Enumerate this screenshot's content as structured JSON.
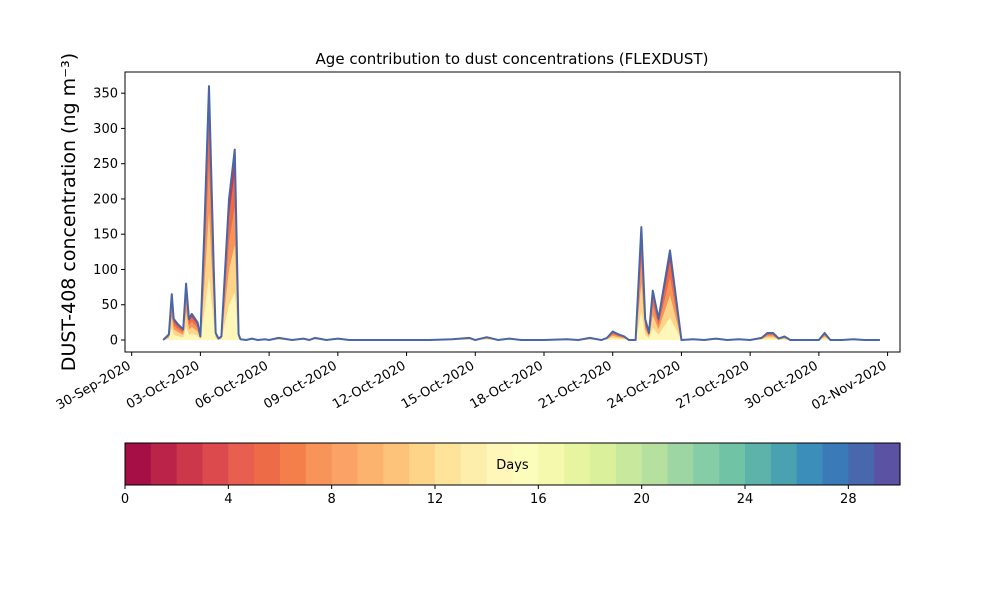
{
  "chart_data": {
    "type": "area",
    "title": "Age contribution to dust concentrations (FLEXDUST)",
    "ylabel": "DUST-408 concentration (ng m⁻³)",
    "xlabel": "",
    "ylim": [
      -17,
      380
    ],
    "xlim": [
      "2020-09-29T17:00",
      "2020-11-02T13:00"
    ],
    "x_tick_labels": [
      "30-Sep-2020",
      "03-Oct-2020",
      "06-Oct-2020",
      "09-Oct-2020",
      "12-Oct-2020",
      "15-Oct-2020",
      "18-Oct-2020",
      "21-Oct-2020",
      "24-Oct-2020",
      "27-Oct-2020",
      "30-Oct-2020",
      "02-Nov-2020"
    ],
    "x_tick_dates": [
      "2020-09-30",
      "2020-10-03",
      "2020-10-06",
      "2020-10-09",
      "2020-10-12",
      "2020-10-15",
      "2020-10-18",
      "2020-10-21",
      "2020-10-24",
      "2020-10-27",
      "2020-10-30",
      "2020-11-02"
    ],
    "y_ticks": [
      0,
      50,
      100,
      150,
      200,
      250,
      300,
      350
    ],
    "series": [
      {
        "type": "line",
        "color": "#4a65a8",
        "x": [
          "2020-10-01T09:00",
          "2020-10-01T15:00",
          "2020-10-01T18:00",
          "2020-10-01T20:00",
          "2020-10-02T00:00",
          "2020-10-02T06:00",
          "2020-10-02T09:00",
          "2020-10-02T12:00",
          "2020-10-02T15:00",
          "2020-10-02T21:00",
          "2020-10-03T00:00",
          "2020-10-03T04:00",
          "2020-10-03T09:00",
          "2020-10-03T14:00",
          "2020-10-03T16:00",
          "2020-10-03T19:00",
          "2020-10-03T22:00",
          "2020-10-04T06:00",
          "2020-10-04T12:00",
          "2020-10-04T14:00",
          "2020-10-04T16:00",
          "2020-10-04T18:00",
          "2020-10-05T00:00",
          "2020-10-05T06:00",
          "2020-10-05T12:00",
          "2020-10-05T20:00",
          "2020-10-06T00:00",
          "2020-10-06T10:00",
          "2020-10-07T00:00",
          "2020-10-07T12:00",
          "2020-10-07T18:00",
          "2020-10-08T00:00",
          "2020-10-08T12:00",
          "2020-10-09T00:00",
          "2020-10-09T12:00",
          "2020-10-09T18:00",
          "2020-10-10T00:00",
          "2020-10-10T12:00",
          "2020-10-11T00:00",
          "2020-10-12T00:00",
          "2020-10-13T00:00",
          "2020-10-14T00:00",
          "2020-10-14T18:00",
          "2020-10-15T00:00",
          "2020-10-15T12:00",
          "2020-10-16T00:00",
          "2020-10-16T12:00",
          "2020-10-17T00:00",
          "2020-10-18T00:00",
          "2020-10-19T00:00",
          "2020-10-19T12:00",
          "2020-10-20T00:00",
          "2020-10-20T12:00",
          "2020-10-20T18:00",
          "2020-10-21T00:00",
          "2020-10-21T06:00",
          "2020-10-21T12:00",
          "2020-10-21T17:00",
          "2020-10-21T21:00",
          "2020-10-22T00:00",
          "2020-10-22T06:00",
          "2020-10-22T10:00",
          "2020-10-22T14:00",
          "2020-10-22T18:00",
          "2020-10-23T00:00",
          "2020-10-23T12:00",
          "2020-10-24T00:00",
          "2020-10-24T12:00",
          "2020-10-25T00:00",
          "2020-10-25T12:00",
          "2020-10-26T00:00",
          "2020-10-26T12:00",
          "2020-10-27T00:00",
          "2020-10-27T12:00",
          "2020-10-27T18:00",
          "2020-10-28T00:00",
          "2020-10-28T06:00",
          "2020-10-28T12:00",
          "2020-10-28T18:00",
          "2020-10-29T00:00",
          "2020-10-29T12:00",
          "2020-10-30T00:00",
          "2020-10-30T06:00",
          "2020-10-30T12:00",
          "2020-10-31T00:00",
          "2020-10-31T12:00",
          "2020-11-01T00:00",
          "2020-11-01T12:00",
          "2020-11-01T16:00"
        ],
        "values": [
          0,
          8,
          65,
          30,
          23,
          15,
          80,
          30,
          37,
          25,
          5,
          150,
          360,
          100,
          10,
          2,
          5,
          200,
          270,
          140,
          8,
          1,
          0,
          2,
          0,
          1,
          0,
          3,
          0,
          2,
          0,
          3,
          0,
          2,
          0,
          0,
          0,
          0,
          0,
          0,
          0,
          1,
          3,
          0,
          4,
          0,
          2,
          0,
          0,
          1,
          0,
          3,
          0,
          3,
          12,
          8,
          5,
          0,
          0,
          0,
          160,
          30,
          10,
          70,
          30,
          127,
          0,
          1,
          0,
          2,
          0,
          1,
          0,
          3,
          10,
          10,
          2,
          5,
          0,
          0,
          0,
          0,
          10,
          0,
          0,
          1,
          0,
          0,
          0
        ]
      }
    ],
    "colorbar": {
      "label": "Days",
      "ticks": [
        0,
        4,
        8,
        12,
        16,
        20,
        24,
        28
      ],
      "range": [
        0,
        30
      ],
      "colors": [
        "#a50f45",
        "#bb2348",
        "#cc384a",
        "#dd4a4d",
        "#e95f4f",
        "#ee6b47",
        "#f57f4b",
        "#f8935a",
        "#fba266",
        "#fcb36e",
        "#fdc37a",
        "#fed488",
        "#fee39a",
        "#fdeeab",
        "#fef7b9",
        "#fbfdbb",
        "#f4f9ae",
        "#e7f5a1",
        "#daf09a",
        "#c8e89e",
        "#b5e0a0",
        "#9dd6a3",
        "#84cda6",
        "#71c3a6",
        "#5db3aa",
        "#4aa2b1",
        "#3c8eba",
        "#3a7ab8",
        "#4867ad",
        "#5c52a4"
      ]
    }
  }
}
